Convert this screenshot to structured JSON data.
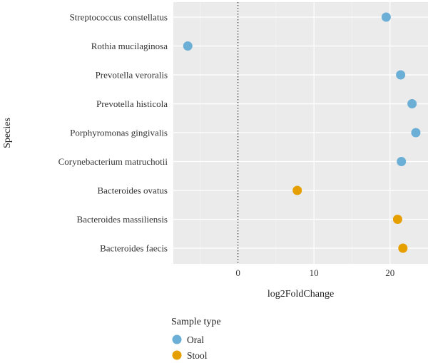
{
  "chart_data": {
    "type": "scatter",
    "title": "",
    "xlabel": "log2FoldChange",
    "ylabel": "Species",
    "xlim": [
      -8.5,
      25
    ],
    "x_ticks": [
      0,
      10,
      20
    ],
    "x_tick_labels": [
      "0",
      "10",
      "20"
    ],
    "reference_line": {
      "x": 0,
      "style": "dotted"
    },
    "grid": true,
    "legend_position": "bottom-left",
    "legend_title": "Sample type",
    "categories": [
      "Streptococcus constellatus",
      "Rothia mucilaginosa",
      "Prevotella veroralis",
      "Prevotella histicola",
      "Porphyromonas gingivalis",
      "Corynebacterium matruchotii",
      "Bacteroides ovatus",
      "Bacteroides massiliensis",
      "Bacteroides faecis"
    ],
    "series": [
      {
        "name": "Oral",
        "color": "#6baed6",
        "points": [
          {
            "species": "Streptococcus constellatus",
            "x": 19.5
          },
          {
            "species": "Rothia mucilaginosa",
            "x": -6.6
          },
          {
            "species": "Prevotella veroralis",
            "x": 21.4
          },
          {
            "species": "Prevotella histicola",
            "x": 22.9
          },
          {
            "species": "Porphyromonas gingivalis",
            "x": 23.4
          },
          {
            "species": "Corynebacterium matruchotii",
            "x": 21.5
          }
        ]
      },
      {
        "name": "Stool",
        "color": "#e69f00",
        "points": [
          {
            "species": "Bacteroides ovatus",
            "x": 7.8
          },
          {
            "species": "Bacteroides massiliensis",
            "x": 21.0
          },
          {
            "species": "Bacteroides faecis",
            "x": 21.7
          }
        ]
      }
    ]
  },
  "colors": {
    "panel_background": "#ebebeb",
    "grid_major": "#ffffff",
    "oral": "#6baed6",
    "stool": "#e69f00"
  }
}
